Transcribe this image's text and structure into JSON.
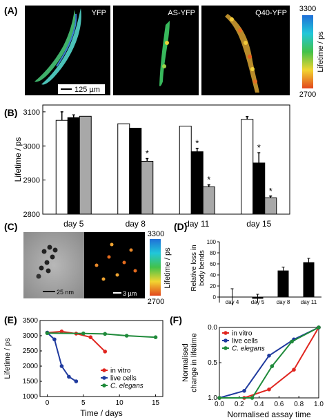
{
  "panels": {
    "A": {
      "letter": "(A)",
      "images": [
        "YFP",
        "AS-YFP",
        "Q40-YFP"
      ],
      "scale_bar": "125 µm",
      "colorbar": {
        "label": "Lifetime / ps",
        "min": "2700",
        "max": "3300"
      }
    },
    "B": {
      "letter": "(B)"
    },
    "C": {
      "letter": "(C)",
      "scale_bar_left": "25 nm",
      "scale_bar_right": "3 µm",
      "colorbar": {
        "label": "Lifetime / ps",
        "min": "2700",
        "max": "3300"
      }
    },
    "D": {
      "letter": "(D)"
    },
    "E": {
      "letter": "(E)"
    },
    "F": {
      "letter": "(F)"
    }
  },
  "colors": {
    "in_vitro": "#e0251f",
    "live_cells": "#1f3a9e",
    "c_elegans": "#1f8a3a",
    "bar_white": "#ffffff",
    "bar_black": "#000000",
    "bar_grey": "#a8a8a8"
  },
  "chart_data": [
    {
      "id": "B",
      "type": "bar",
      "categories": [
        "day 5",
        "day 8",
        "day 11",
        "day 15"
      ],
      "series": [
        {
          "values": [
            3075,
            3065,
            3058,
            3078
          ],
          "errors": [
            25,
            0,
            0,
            8
          ],
          "stars": [
            false,
            false,
            false,
            false
          ]
        },
        {
          "values": [
            3083,
            3052,
            2983,
            2950
          ],
          "errors": [
            8,
            0,
            10,
            30
          ],
          "stars": [
            false,
            false,
            true,
            true
          ]
        },
        {
          "values": [
            3087,
            2955,
            2880,
            2848
          ],
          "errors": [
            0,
            8,
            6,
            5
          ],
          "stars": [
            false,
            true,
            true,
            true
          ]
        }
      ],
      "ylabel": "Lifetime / ps",
      "ylim": [
        2800,
        3120
      ],
      "yticks": [
        "2800",
        "2900",
        "3000",
        "3100"
      ],
      "star_label": "*"
    },
    {
      "id": "D",
      "type": "bar",
      "categories": [
        "day 4",
        "day 5",
        "day 8",
        "day 11"
      ],
      "values": [
        0,
        -3,
        48,
        63
      ],
      "errors": [
        15,
        8,
        6,
        7
      ],
      "ylabel": "Relative loss in\nbody bends",
      "ylim": [
        -10,
        100
      ],
      "yticks": [
        "0",
        "20",
        "40",
        "60",
        "80",
        "100"
      ]
    },
    {
      "id": "E",
      "type": "line",
      "xlabel": "Time / days",
      "ylabel": "Lifetime / ps",
      "xlim": [
        -1,
        16
      ],
      "ylim": [
        1000,
        3500
      ],
      "xticks": [
        "0",
        "5",
        "10",
        "15"
      ],
      "yticks": [
        "1000",
        "1500",
        "2000",
        "2500",
        "3000",
        "3500"
      ],
      "series": [
        {
          "name": "in vitro",
          "x": [
            0,
            2,
            4,
            6,
            8
          ],
          "y": [
            3100,
            3140,
            3070,
            2950,
            2480
          ]
        },
        {
          "name": "live cells",
          "x": [
            0,
            1,
            2,
            3,
            4
          ],
          "y": [
            3100,
            2880,
            2000,
            1650,
            1500
          ]
        },
        {
          "name": "C. elegans",
          "x": [
            0,
            5,
            8,
            11,
            15
          ],
          "y": [
            3085,
            3075,
            3060,
            3000,
            2950
          ]
        }
      ]
    },
    {
      "id": "F",
      "type": "line",
      "xlabel": "Normalised assay time",
      "ylabel": "Normalised\nchange in lifetime",
      "xlim": [
        0,
        1
      ],
      "ylim": [
        1.0,
        0.0
      ],
      "xticks": [
        "0.0",
        "0.2",
        "0.4",
        "0.6",
        "0.8",
        "1.0"
      ],
      "yticks": [
        "0.0",
        "0.5",
        "1.0"
      ],
      "series": [
        {
          "name": "in vitro",
          "x": [
            0,
            0.25,
            0.5,
            0.75,
            1.0
          ],
          "y": [
            1.0,
            1.0,
            0.88,
            0.6,
            0.0
          ]
        },
        {
          "name": "live cells",
          "x": [
            0,
            0.25,
            0.5,
            0.75,
            1.0
          ],
          "y": [
            1.0,
            0.9,
            0.4,
            0.17,
            0.0
          ]
        },
        {
          "name": "C. elegans",
          "x": [
            0,
            0.33,
            0.53,
            0.73,
            1.0
          ],
          "y": [
            1.0,
            1.0,
            0.55,
            0.2,
            0.0
          ]
        }
      ]
    }
  ]
}
